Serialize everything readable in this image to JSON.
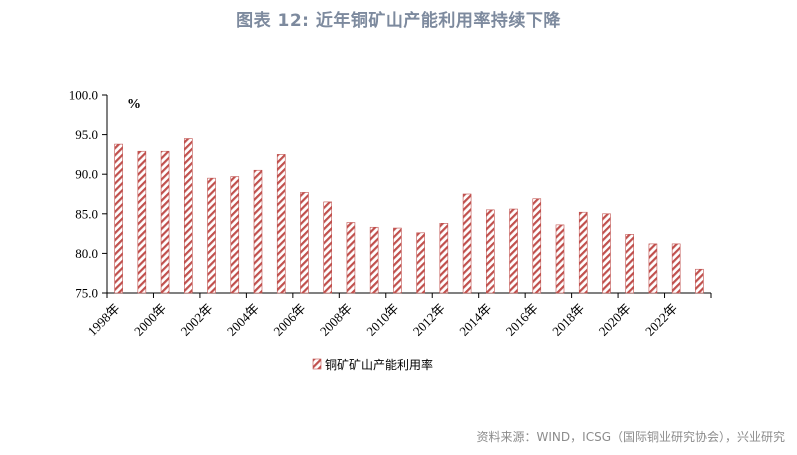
{
  "figure": {
    "title": "图表 12: 近年铜矿山产能利用率持续下降",
    "source": "资料来源：WIND，ICSG（国际铜业研究协会），兴业研究"
  },
  "chart_data": {
    "type": "bar",
    "title": "图表 12: 近年铜矿山产能利用率持续下降",
    "unit_label": "%",
    "xlabel": "",
    "ylabel": "",
    "ylim": [
      75,
      100
    ],
    "yticks": [
      "75.0",
      "80.0",
      "85.0",
      "90.0",
      "95.0",
      "100.0"
    ],
    "categories": [
      "1998年",
      "1999年",
      "2000年",
      "2001年",
      "2002年",
      "2003年",
      "2004年",
      "2005年",
      "2006年",
      "2007年",
      "2008年",
      "2009年",
      "2010年",
      "2011年",
      "2012年",
      "2013年",
      "2014年",
      "2015年",
      "2016年",
      "2017年",
      "2018年",
      "2019年",
      "2020年",
      "2021年",
      "2022年",
      "2023年"
    ],
    "xtick_labels": [
      "1998年",
      "2000年",
      "2002年",
      "2004年",
      "2006年",
      "2008年",
      "2010年",
      "2012年",
      "2014年",
      "2016年",
      "2018年",
      "2020年",
      "2022年"
    ],
    "series": [
      {
        "name": "铜矿矿山产能利用率",
        "color": "#c0504d",
        "values": [
          93.8,
          92.9,
          92.9,
          94.5,
          89.5,
          89.7,
          90.5,
          92.5,
          87.7,
          86.5,
          83.9,
          83.3,
          83.2,
          82.6,
          83.8,
          87.5,
          85.5,
          85.6,
          86.9,
          83.6,
          85.2,
          85.0,
          82.4,
          81.2,
          81.2,
          78.0
        ]
      }
    ],
    "grid": false,
    "legend": "bottom-center"
  }
}
